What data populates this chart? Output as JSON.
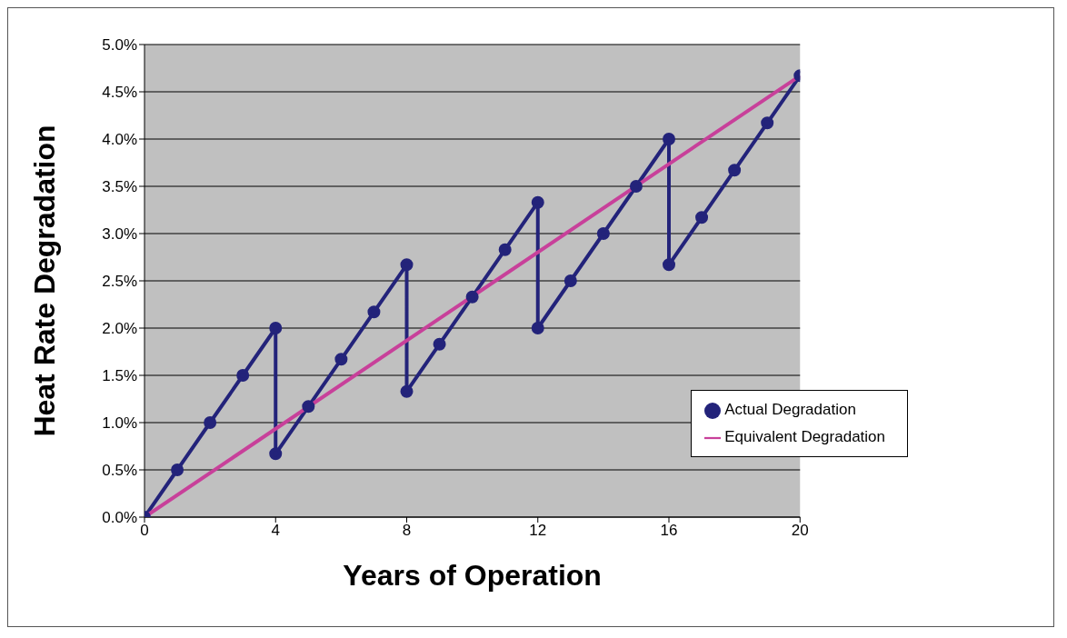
{
  "chart_data": {
    "type": "line",
    "xlabel": "Years of Operation",
    "ylabel": "Heat Rate Degradation",
    "series": [
      {
        "name": "Actual  Degradation",
        "color": "#23237a",
        "marker": "circle",
        "x": [
          0,
          1,
          2,
          3,
          4,
          4,
          5,
          6,
          7,
          8,
          8,
          9,
          10,
          11,
          12,
          12,
          13,
          14,
          15,
          16,
          16,
          17,
          18,
          19,
          20
        ],
        "values": [
          0,
          0.5,
          1.0,
          1.5,
          2.0,
          0.67,
          1.17,
          1.67,
          2.17,
          2.67,
          1.33,
          1.83,
          2.33,
          2.83,
          3.33,
          2.0,
          2.5,
          3.0,
          3.5,
          4.0,
          2.67,
          3.17,
          3.67,
          4.17,
          4.67
        ]
      },
      {
        "name": "Equivalent Degradation",
        "color": "#c8409a",
        "marker": "none",
        "x": [
          0,
          20
        ],
        "values": [
          0,
          4.67
        ]
      }
    ],
    "xlim": [
      0,
      20
    ],
    "xticks": [
      0,
      4,
      8,
      12,
      16,
      20
    ],
    "ylim": [
      0,
      5
    ],
    "yticks": [
      {
        "value": 0,
        "label": "0.0%"
      },
      {
        "value": 0.5,
        "label": "0.5%"
      },
      {
        "value": 1,
        "label": "1.0%"
      },
      {
        "value": 1.5,
        "label": "1.5%"
      },
      {
        "value": 2,
        "label": "2.0%"
      },
      {
        "value": 2.5,
        "label": "2.5%"
      },
      {
        "value": 3,
        "label": "3.0%"
      },
      {
        "value": 3.5,
        "label": "3.5%"
      },
      {
        "value": 4,
        "label": "4.0%"
      },
      {
        "value": 4.5,
        "label": "4.5%"
      },
      {
        "value": 5,
        "label": "5.0%"
      }
    ],
    "grid": "y",
    "legend": "right",
    "line_style": "solid"
  }
}
